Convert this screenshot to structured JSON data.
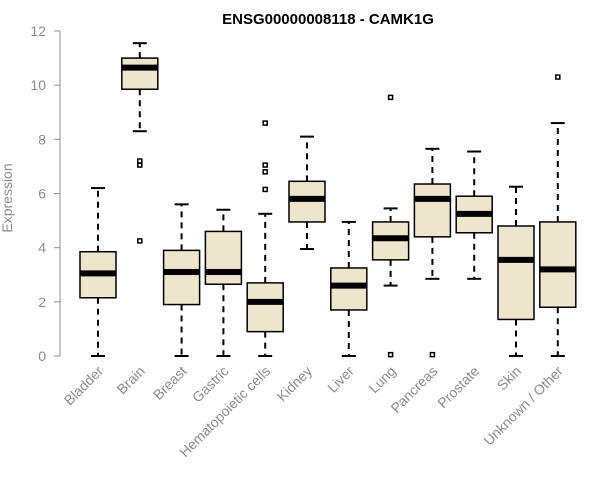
{
  "chart_data": {
    "type": "boxplot",
    "title": "ENSG00000008118 - CAMK1G",
    "xlabel": "",
    "ylabel": "Expression",
    "ylim": [
      0,
      12
    ],
    "yticks": [
      0,
      2,
      4,
      6,
      8,
      10,
      12
    ],
    "grid": false,
    "colors": {
      "box_fill": "#ede6cd",
      "box_stroke": "#000000",
      "axis": "#8c8c8c"
    },
    "categories": [
      "Bladder",
      "Brain",
      "Breast",
      "Gastric",
      "Hematopoietic cells",
      "Kidney",
      "Liver",
      "Lung",
      "Pancreas",
      "Prostate",
      "Skin",
      "Unknown / Other"
    ],
    "series": [
      {
        "name": "Bladder",
        "whislo": 0.0,
        "q1": 2.15,
        "med": 3.05,
        "q3": 3.85,
        "whishi": 6.2,
        "fliers": []
      },
      {
        "name": "Brain",
        "whislo": 8.3,
        "q1": 9.85,
        "med": 10.65,
        "q3": 11.0,
        "whishi": 11.55,
        "fliers": [
          7.2,
          7.05,
          4.25
        ]
      },
      {
        "name": "Breast",
        "whislo": 0.0,
        "q1": 1.9,
        "med": 3.1,
        "q3": 3.9,
        "whishi": 5.6,
        "fliers": []
      },
      {
        "name": "Gastric",
        "whislo": 0.0,
        "q1": 2.65,
        "med": 3.1,
        "q3": 4.6,
        "whishi": 5.4,
        "fliers": []
      },
      {
        "name": "Hematopoietic cells",
        "whislo": 0.0,
        "q1": 0.9,
        "med": 2.0,
        "q3": 2.7,
        "whishi": 5.25,
        "fliers": [
          8.6,
          7.05,
          6.8,
          6.15
        ]
      },
      {
        "name": "Kidney",
        "whislo": 3.95,
        "q1": 4.95,
        "med": 5.8,
        "q3": 6.45,
        "whishi": 8.1,
        "fliers": []
      },
      {
        "name": "Liver",
        "whislo": 0.0,
        "q1": 1.7,
        "med": 2.6,
        "q3": 3.25,
        "whishi": 4.95,
        "fliers": []
      },
      {
        "name": "Lung",
        "whislo": 2.6,
        "q1": 3.55,
        "med": 4.35,
        "q3": 4.95,
        "whishi": 5.45,
        "fliers": [
          9.55,
          0.05
        ]
      },
      {
        "name": "Pancreas",
        "whislo": 2.85,
        "q1": 4.4,
        "med": 5.8,
        "q3": 6.35,
        "whishi": 7.65,
        "fliers": [
          0.05
        ]
      },
      {
        "name": "Prostate",
        "whislo": 2.85,
        "q1": 4.55,
        "med": 5.25,
        "q3": 5.9,
        "whishi": 7.55,
        "fliers": []
      },
      {
        "name": "Skin",
        "whislo": 0.0,
        "q1": 1.35,
        "med": 3.55,
        "q3": 4.8,
        "whishi": 6.25,
        "fliers": []
      },
      {
        "name": "Unknown / Other",
        "whislo": 0.0,
        "q1": 1.8,
        "med": 3.2,
        "q3": 4.95,
        "whishi": 8.6,
        "fliers": [
          10.3
        ]
      }
    ]
  }
}
